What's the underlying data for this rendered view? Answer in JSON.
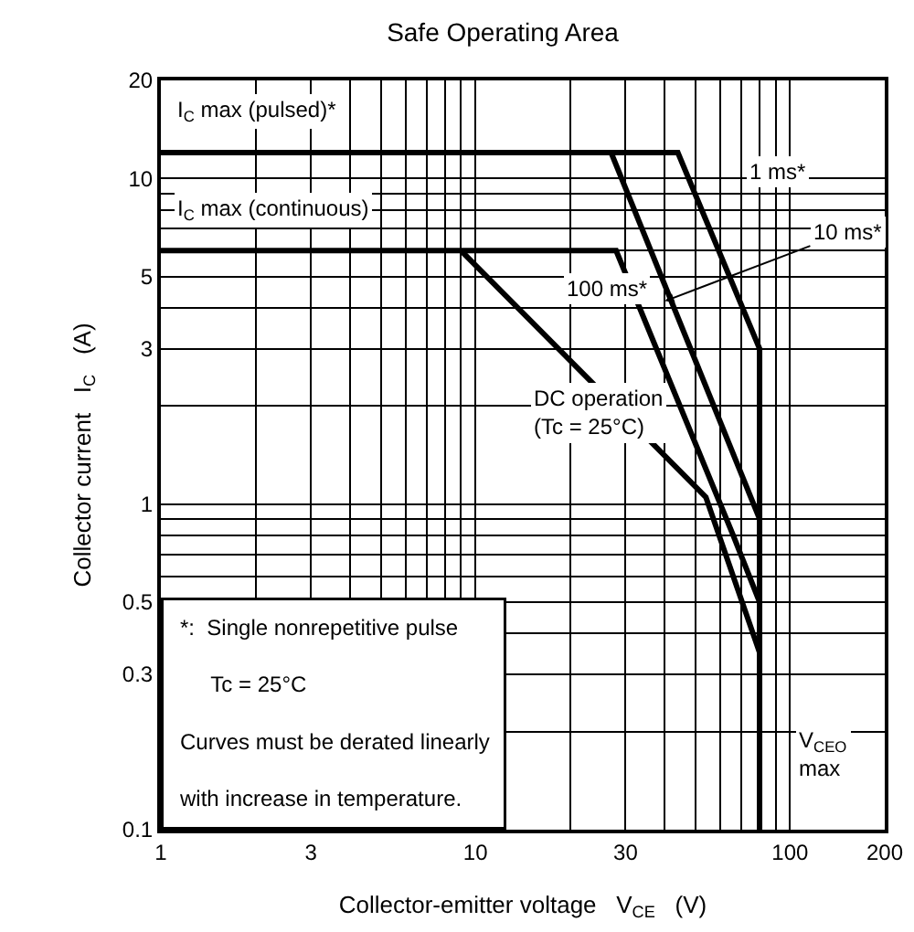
{
  "chart_data": {
    "type": "line",
    "title": "Safe Operating Area",
    "xlabel": "Collector-emitter voltage   V$_{CE}$   (V)",
    "ylabel": "Collector current   I$_{C}$   (A)",
    "log": "xy",
    "xlim": [
      1,
      200
    ],
    "ylim": [
      0.1,
      20
    ],
    "xticks": [
      1,
      3,
      10,
      30,
      100,
      200
    ],
    "yticks": [
      0.1,
      0.3,
      0.5,
      1,
      3,
      5,
      10,
      20
    ],
    "grid": true,
    "marker": "none",
    "line_style": "solid",
    "series": [
      {
        "color": "#000000",
        "x": [
          1,
          44,
          80,
          80
        ],
        "values": [
          12,
          12,
          3,
          0.1
        ]
      },
      {
        "color": "#000000",
        "x": [
          27,
          80
        ],
        "values": [
          12,
          0.9
        ]
      },
      {
        "color": "#000000",
        "x": [
          1,
          28,
          66,
          80
        ],
        "values": [
          6,
          6,
          0.8,
          0.5
        ]
      },
      {
        "color": "#000000",
        "x": [
          9,
          54,
          80
        ],
        "values": [
          6,
          1.05,
          0.35
        ]
      }
    ],
    "annotations": [
      "I$_{C}$ max (pulsed)*",
      "I$_{C}$ max (continuous)",
      "1 ms*",
      {
        "text": "10 ms*",
        "x": 40,
        "y": 4.2
      },
      "100 ms*",
      "DC operation\n(Tc = 25°C)",
      "V$_{CEO}$\nmax",
      "*:  Single nonrepetitive pulse",
      "     Tc = 25°C",
      "Curves must be derated linearly",
      "with increase in temperature."
    ]
  }
}
